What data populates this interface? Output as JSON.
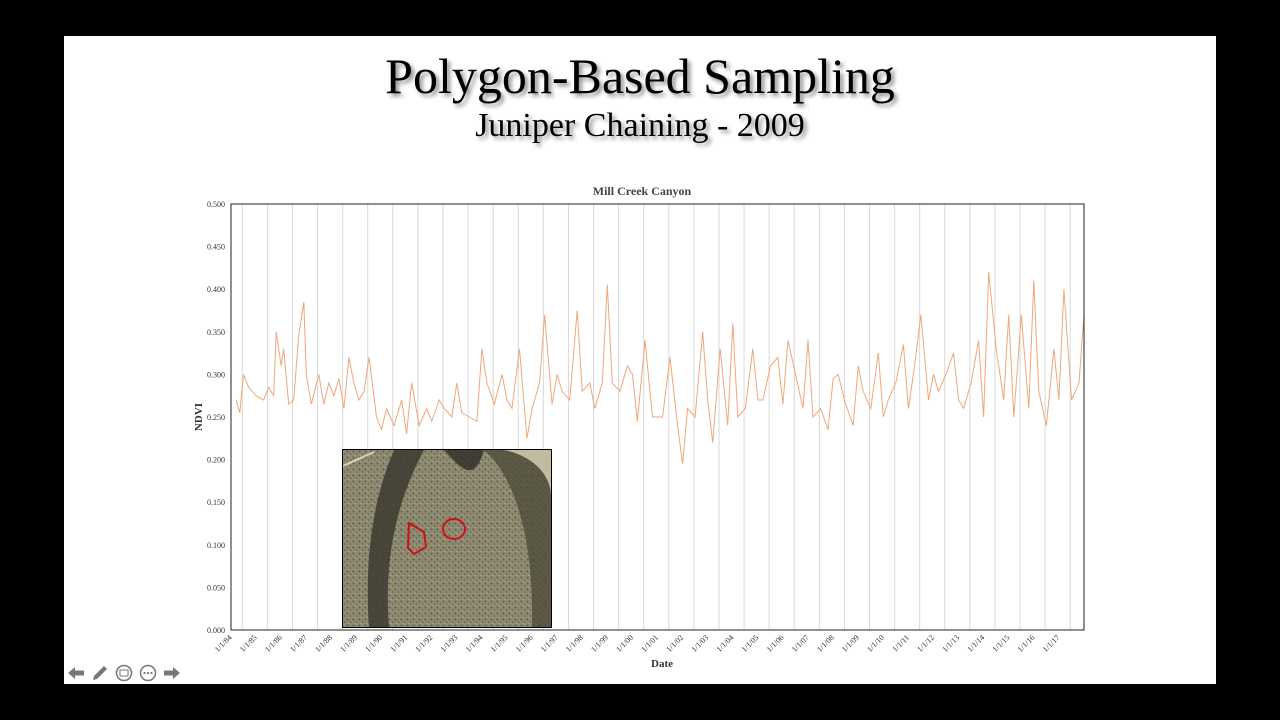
{
  "slide": {
    "title": "Polygon-Based Sampling",
    "subtitle": "Juniper Chaining - 2009"
  },
  "toolbar": {
    "icons": [
      "arrow-left-icon",
      "pen-icon",
      "slides-icon",
      "more-icon",
      "arrow-right-icon"
    ]
  },
  "inset_image": {
    "description_icon": "aerial-photo",
    "outline_color": "#cc1111"
  },
  "chart_data": {
    "type": "line",
    "title": "Mill Creek Canyon",
    "xlabel": "Date",
    "ylabel": "NDVI",
    "ylim": [
      0,
      0.5
    ],
    "yticks": [
      "0.000",
      "0.050",
      "0.100",
      "0.150",
      "0.200",
      "0.250",
      "0.300",
      "0.350",
      "0.400",
      "0.450",
      "0.500"
    ],
    "xticks": [
      "1/1/84",
      "1/1/85",
      "1/1/86",
      "1/1/87",
      "1/1/88",
      "1/1/89",
      "1/1/90",
      "1/1/91",
      "1/1/92",
      "1/1/93",
      "1/1/94",
      "1/1/95",
      "1/1/96",
      "1/1/97",
      "1/1/98",
      "1/1/99",
      "1/1/00",
      "1/1/01",
      "1/1/02",
      "1/1/03",
      "1/1/04",
      "1/1/05",
      "1/1/06",
      "1/1/07",
      "1/1/08",
      "1/1/09",
      "1/1/10",
      "1/1/11",
      "1/1/12",
      "1/1/13",
      "1/1/14",
      "1/1/15",
      "1/1/16",
      "1/1/17"
    ],
    "xlim": [
      1984.0,
      2018.0
    ],
    "grid": "vertical",
    "line_color": "#f0a77a",
    "series": [
      {
        "x": [
          1984.2,
          1984.35,
          1984.5,
          1984.7,
          1985.0,
          1985.3,
          1985.5,
          1985.7,
          1985.8,
          1986.0,
          1986.1,
          1986.3,
          1986.5,
          1986.7,
          1986.9,
          1987.0,
          1987.2,
          1987.5,
          1987.7,
          1987.9,
          1988.1,
          1988.3,
          1988.5,
          1988.7,
          1988.9,
          1989.1,
          1989.3,
          1989.5,
          1989.8,
          1990.0,
          1990.2,
          1990.5,
          1990.8,
          1991.0,
          1991.2,
          1991.5,
          1991.8,
          1992.0,
          1992.3,
          1992.5,
          1992.8,
          1993.0,
          1993.2,
          1993.5,
          1993.8,
          1994.0,
          1994.2,
          1994.5,
          1994.8,
          1995.0,
          1995.2,
          1995.5,
          1995.8,
          1996.0,
          1996.3,
          1996.5,
          1996.8,
          1997.0,
          1997.2,
          1997.5,
          1997.8,
          1998.0,
          1998.3,
          1998.5,
          1998.8,
          1999.0,
          1999.2,
          1999.5,
          1999.8,
          2000.0,
          2000.2,
          2000.5,
          2000.8,
          2001.0,
          2001.2,
          2001.5,
          2001.8,
          2002.0,
          2002.2,
          2002.5,
          2002.8,
          2003.0,
          2003.2,
          2003.5,
          2003.8,
          2004.0,
          2004.2,
          2004.5,
          2004.8,
          2005.0,
          2005.2,
          2005.5,
          2005.8,
          2006.0,
          2006.2,
          2006.5,
          2006.8,
          2007.0,
          2007.2,
          2007.5,
          2007.8,
          2008.0,
          2008.2,
          2008.5,
          2008.8,
          2009.0,
          2009.2,
          2009.5,
          2009.8,
          2010.0,
          2010.2,
          2010.5,
          2010.8,
          2011.0,
          2011.2,
          2011.5,
          2011.8,
          2012.0,
          2012.2,
          2012.5,
          2012.8,
          2013.0,
          2013.2,
          2013.5,
          2013.8,
          2014.0,
          2014.2,
          2014.5,
          2014.8,
          2015.0,
          2015.2,
          2015.5,
          2015.8,
          2016.0,
          2016.2,
          2016.5,
          2016.8,
          2017.0,
          2017.2,
          2017.5,
          2017.8,
          2018.0
        ],
        "y": [
          0.27,
          0.255,
          0.3,
          0.285,
          0.275,
          0.27,
          0.285,
          0.275,
          0.35,
          0.31,
          0.33,
          0.265,
          0.27,
          0.345,
          0.385,
          0.3,
          0.265,
          0.3,
          0.265,
          0.29,
          0.275,
          0.295,
          0.26,
          0.32,
          0.29,
          0.27,
          0.28,
          0.32,
          0.25,
          0.235,
          0.26,
          0.24,
          0.27,
          0.23,
          0.29,
          0.24,
          0.26,
          0.245,
          0.27,
          0.26,
          0.25,
          0.29,
          0.255,
          0.25,
          0.245,
          0.33,
          0.29,
          0.265,
          0.3,
          0.27,
          0.26,
          0.33,
          0.225,
          0.26,
          0.29,
          0.37,
          0.265,
          0.3,
          0.28,
          0.27,
          0.375,
          0.28,
          0.29,
          0.26,
          0.29,
          0.405,
          0.29,
          0.28,
          0.31,
          0.3,
          0.245,
          0.34,
          0.25,
          0.25,
          0.25,
          0.32,
          0.24,
          0.195,
          0.26,
          0.25,
          0.35,
          0.27,
          0.22,
          0.33,
          0.24,
          0.36,
          0.25,
          0.26,
          0.33,
          0.27,
          0.27,
          0.31,
          0.32,
          0.265,
          0.34,
          0.3,
          0.26,
          0.34,
          0.25,
          0.26,
          0.235,
          0.295,
          0.3,
          0.265,
          0.24,
          0.31,
          0.28,
          0.26,
          0.325,
          0.25,
          0.27,
          0.29,
          0.335,
          0.26,
          0.3,
          0.37,
          0.27,
          0.3,
          0.28,
          0.3,
          0.325,
          0.27,
          0.26,
          0.29,
          0.34,
          0.25,
          0.42,
          0.33,
          0.27,
          0.37,
          0.25,
          0.37,
          0.26,
          0.41,
          0.28,
          0.24,
          0.33,
          0.27,
          0.4,
          0.27,
          0.29,
          0.37
        ]
      }
    ]
  }
}
